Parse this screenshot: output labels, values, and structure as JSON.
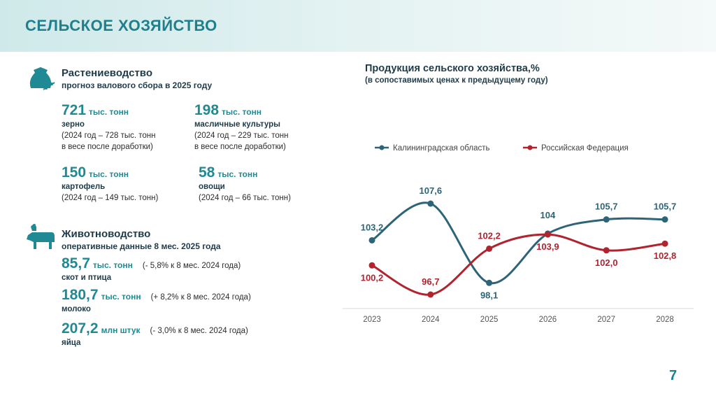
{
  "header": {
    "title": "СЕЛЬСКОЕ ХОЗЯЙСТВО"
  },
  "crops": {
    "title": "Растениеводство",
    "subtitle": "прогноз валового сбора в 2025 году",
    "items": [
      {
        "value": "721",
        "unit": "тыс. тонн",
        "label": "зерно",
        "note1": "(2024 год – 728 тыс. тонн",
        "note2": "в весе после доработки)"
      },
      {
        "value": "198",
        "unit": "тыс. тонн",
        "label": "масличные культуры",
        "note1": "(2024 год – 229 тыс. тонн",
        "note2": "в весе после доработки)"
      },
      {
        "value": "150",
        "unit": "тыс. тонн",
        "label": "картофель",
        "note1": "(2024 год – 149 тыс. тонн)"
      },
      {
        "value": "58",
        "unit": "тыс. тонн",
        "label": "овощи",
        "note1": "(2024 год – 66 тыс. тонн)"
      }
    ]
  },
  "livestock": {
    "title": "Животноводство",
    "subtitle": "оперативные данные 8 мес. 2025 года",
    "items": [
      {
        "value": "85,7",
        "unit": "тыс. тонн",
        "comparison": "(- 5,8% к 8 мес. 2024 года)",
        "label": "скот и птица"
      },
      {
        "value": "180,7",
        "unit": "тыс. тонн",
        "comparison": "(+ 8,2% к 8 мес. 2024 года)",
        "label": "молоко"
      },
      {
        "value": "207,2",
        "unit": "млн штук",
        "comparison": "(- 3,0% к 8 мес. 2024 года)",
        "label": "яйца"
      }
    ]
  },
  "page_number": "7",
  "colors": {
    "accent": "#1f7f8c",
    "kaliningrad": "#2d6478",
    "russia": "#b0232f"
  },
  "chart_data": {
    "type": "line",
    "title": "Продукция сельского хозяйства,%",
    "subtitle": "(в сопоставимых ценах к предыдущему году)",
    "categories": [
      "2023",
      "2024",
      "2025",
      "2026",
      "2027",
      "2028"
    ],
    "series": [
      {
        "name": "Калининградская область",
        "values": [
          103.2,
          107.6,
          98.1,
          104,
          105.7,
          105.7
        ],
        "labels": [
          "103,2",
          "107,6",
          "98,1",
          "104",
          "105,7",
          "105,7"
        ]
      },
      {
        "name": "Российская Федерация",
        "values": [
          100.2,
          96.7,
          102.2,
          103.9,
          102.0,
          102.8
        ],
        "labels": [
          "100,2",
          "96,7",
          "102,2",
          "103,9",
          "102,0",
          "102,8"
        ]
      }
    ],
    "legend_position": "top-left"
  }
}
